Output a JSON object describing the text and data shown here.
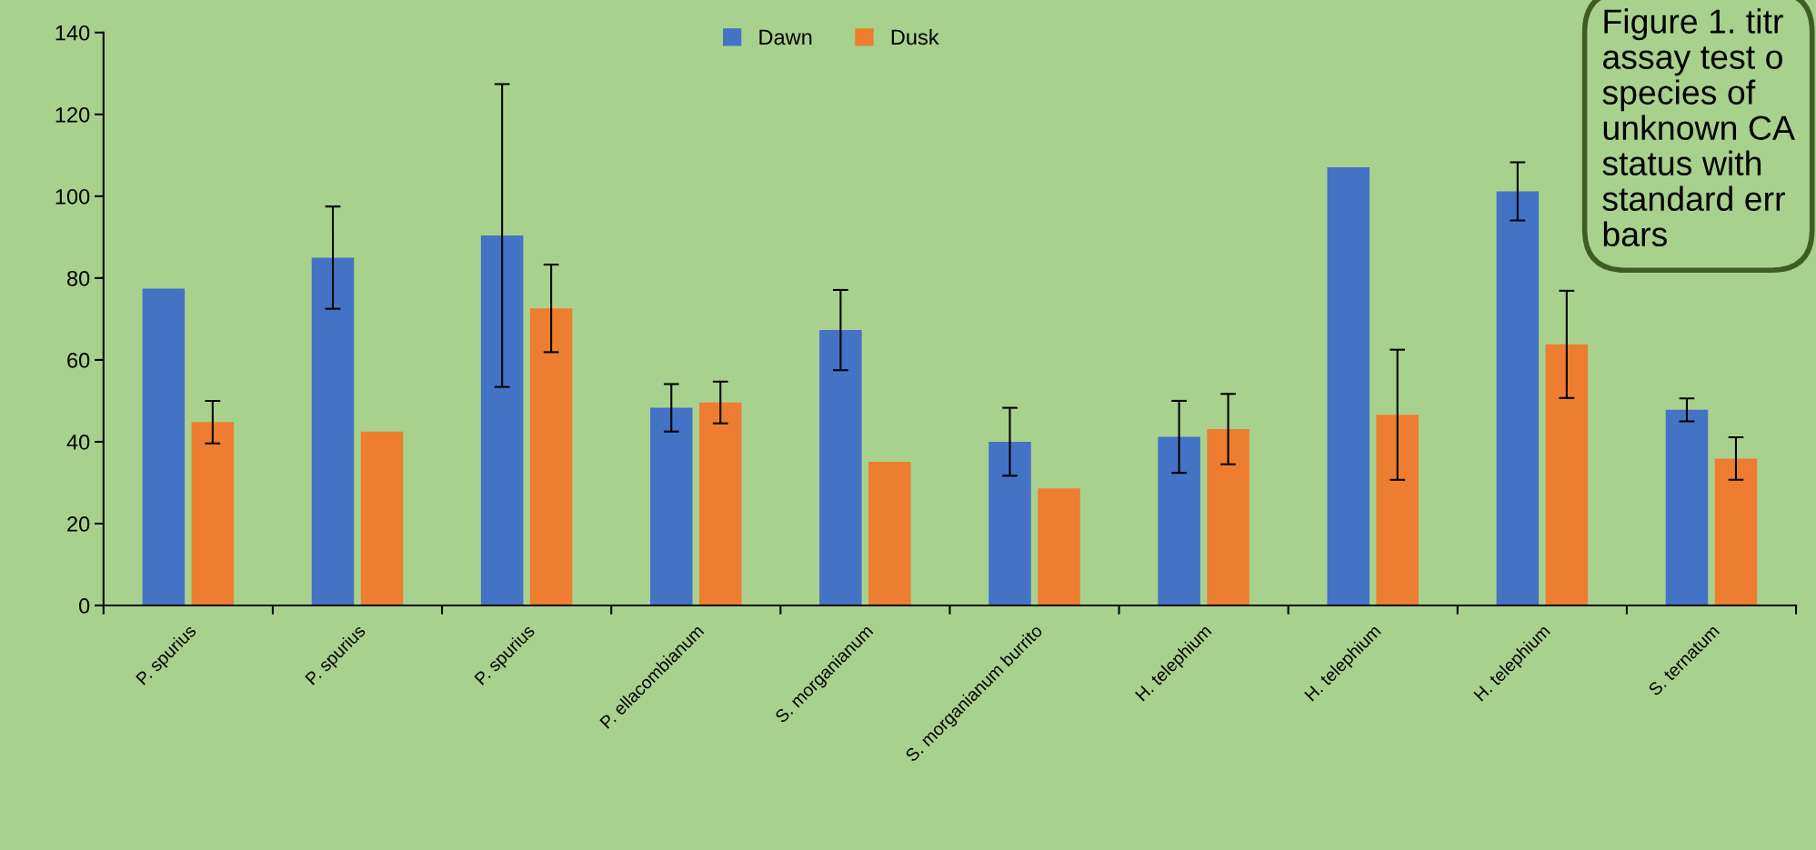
{
  "chart_data": {
    "type": "bar",
    "categories": [
      "P. spurius",
      "P. spurius",
      "P. spurius",
      "P. ellacombianum",
      "S. morganianum",
      "S. morganianum burrito",
      "H. telephium",
      "H. telephium",
      "H. telephium",
      "S. ternatum"
    ],
    "series": [
      {
        "name": "Dawn",
        "color": "#4472c4",
        "values": [
          77.4,
          85.0,
          90.4,
          48.3,
          67.3,
          40.0,
          41.2,
          107.1,
          101.2,
          47.8
        ],
        "errors": [
          null,
          12.5,
          37.0,
          5.8,
          9.8,
          8.3,
          8.8,
          null,
          7.1,
          2.8
        ]
      },
      {
        "name": "Dusk",
        "color": "#ed7d31",
        "values": [
          44.8,
          42.5,
          72.6,
          49.6,
          35.1,
          28.6,
          43.1,
          46.6,
          63.8,
          35.9
        ],
        "errors": [
          5.2,
          null,
          10.7,
          5.1,
          null,
          null,
          8.6,
          15.9,
          13.1,
          5.2
        ]
      }
    ],
    "ylim": [
      0,
      140
    ],
    "yticks": [
      0,
      20,
      40,
      60,
      80,
      100,
      120,
      140
    ],
    "grid": false,
    "legend": "top",
    "annotations": [
      "Figure 1. titr\nassay test o\nspecies of\nunknown CA\nstatus with\nstandard err\nbars"
    ]
  }
}
